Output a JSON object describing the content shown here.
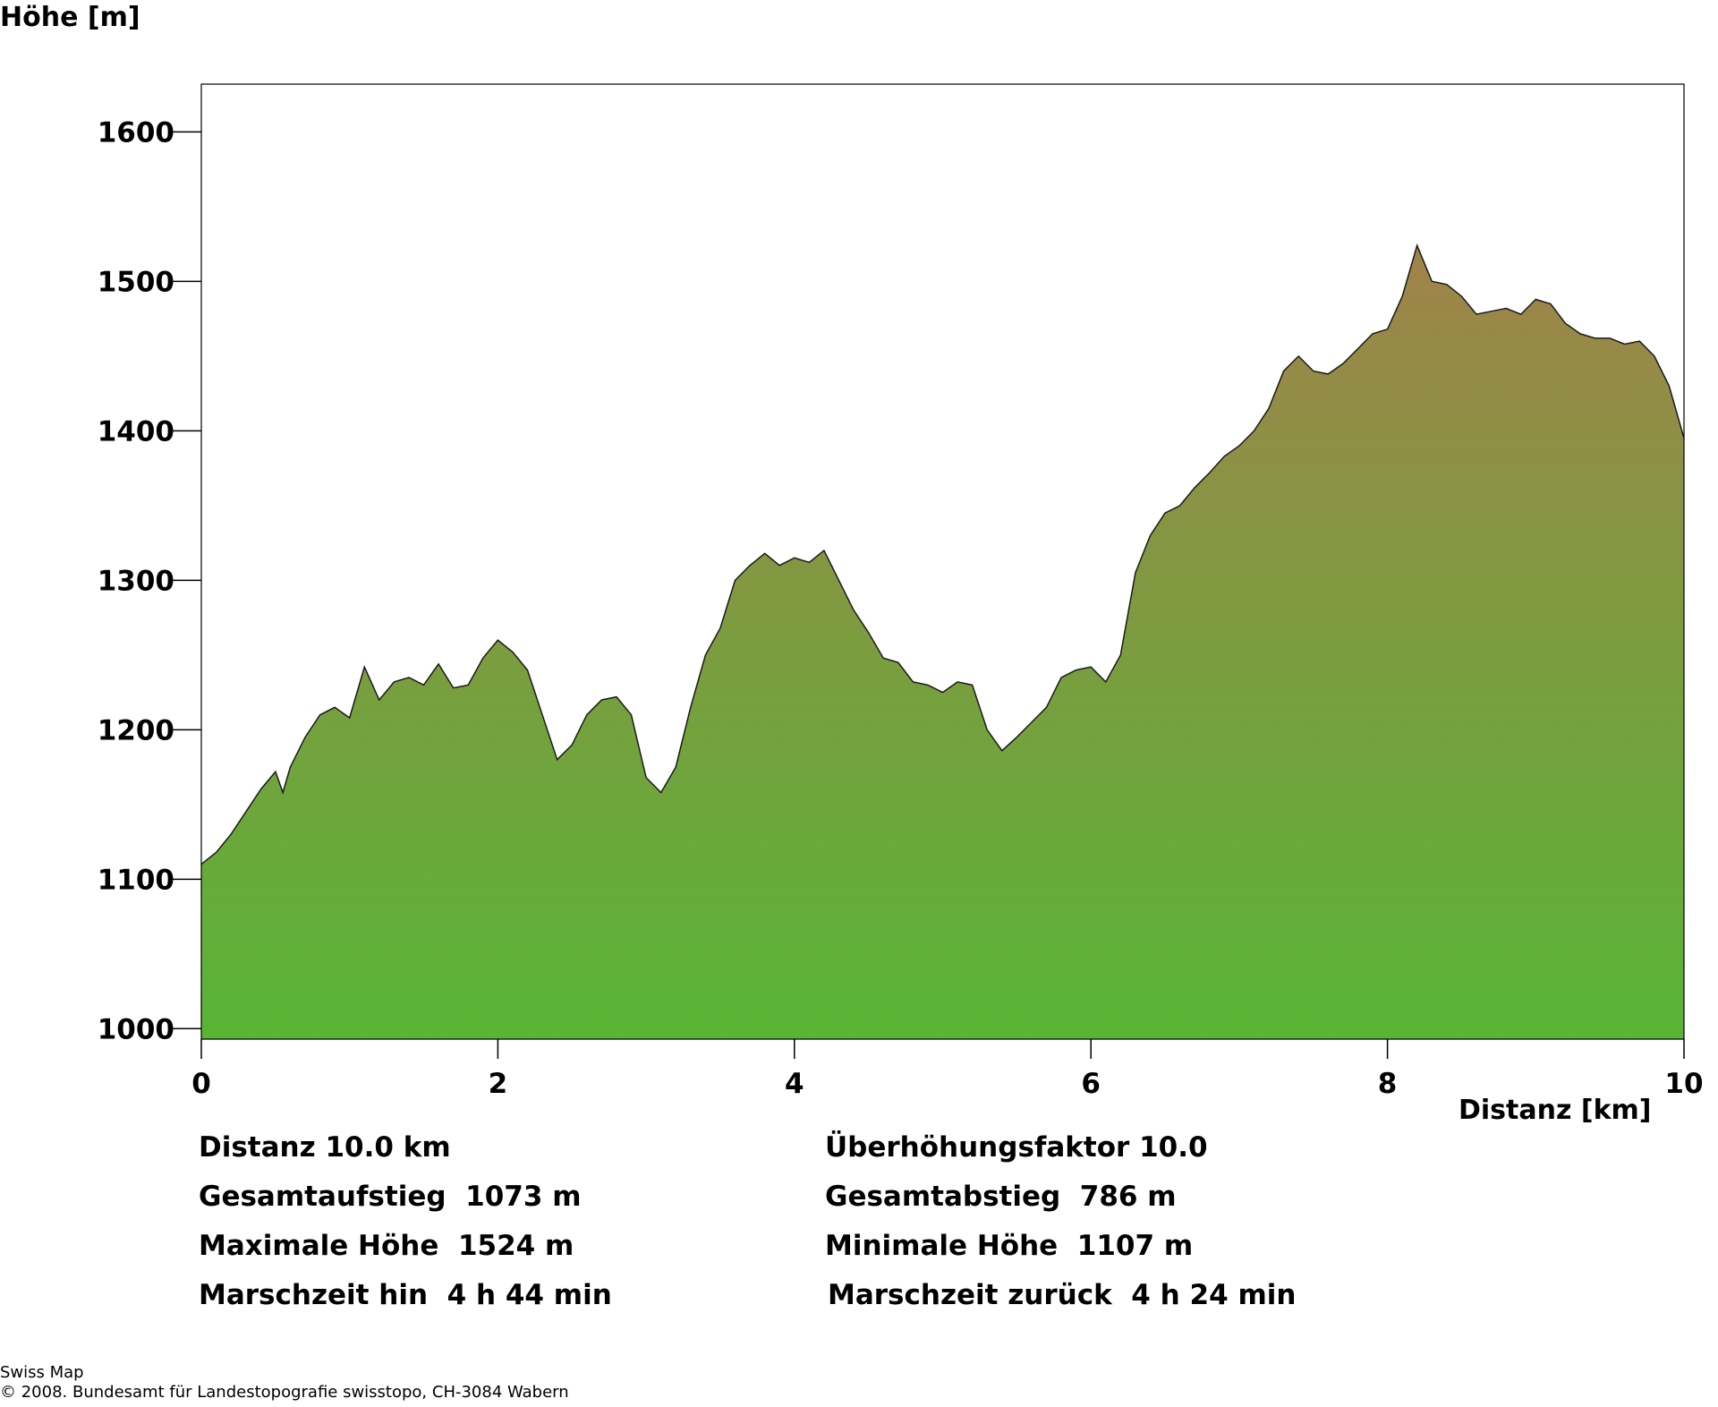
{
  "chart_data": {
    "type": "area",
    "title": "",
    "ylabel": "Höhe [m]",
    "xlabel": "Distanz [km]",
    "xlim": [
      0,
      10
    ],
    "ylim": [
      993,
      1632
    ],
    "x_ticks": [
      "0",
      "2",
      "4",
      "6",
      "8",
      "10"
    ],
    "y_ticks": [
      "1000",
      "1100",
      "1200",
      "1300",
      "1400",
      "1500",
      "1600"
    ],
    "grid": false,
    "legend": "none",
    "fill_top_color": "#a0834a",
    "fill_bottom_color": "#58b535",
    "series": [
      {
        "x": [
          0,
          0.1,
          0.2,
          0.3,
          0.4,
          0.5,
          0.55,
          0.6,
          0.7,
          0.8,
          0.9,
          1.0,
          1.1,
          1.2,
          1.3,
          1.4,
          1.5,
          1.6,
          1.7,
          1.8,
          1.9,
          2.0,
          2.1,
          2.2,
          2.3,
          2.4,
          2.5,
          2.6,
          2.7,
          2.8,
          2.9,
          3.0,
          3.1,
          3.2,
          3.3,
          3.4,
          3.5,
          3.6,
          3.7,
          3.8,
          3.9,
          4.0,
          4.1,
          4.2,
          4.3,
          4.4,
          4.5,
          4.6,
          4.7,
          4.8,
          4.9,
          5.0,
          5.1,
          5.2,
          5.3,
          5.4,
          5.5,
          5.6,
          5.7,
          5.8,
          5.9,
          6.0,
          6.1,
          6.2,
          6.3,
          6.4,
          6.5,
          6.6,
          6.7,
          6.8,
          6.9,
          7.0,
          7.1,
          7.2,
          7.3,
          7.4,
          7.5,
          7.6,
          7.7,
          7.8,
          7.9,
          8.0,
          8.1,
          8.2,
          8.3,
          8.4,
          8.5,
          8.6,
          8.7,
          8.8,
          8.9,
          9.0,
          9.1,
          9.2,
          9.3,
          9.4,
          9.5,
          9.6,
          9.7,
          9.8,
          9.9,
          10.0
        ],
        "y": [
          1110,
          1118,
          1130,
          1145,
          1160,
          1172,
          1158,
          1175,
          1195,
          1210,
          1215,
          1208,
          1242,
          1220,
          1232,
          1235,
          1230,
          1244,
          1228,
          1230,
          1248,
          1260,
          1252,
          1240,
          1210,
          1180,
          1190,
          1210,
          1220,
          1222,
          1210,
          1168,
          1158,
          1175,
          1215,
          1250,
          1268,
          1300,
          1310,
          1318,
          1310,
          1315,
          1312,
          1320,
          1300,
          1280,
          1265,
          1248,
          1245,
          1232,
          1230,
          1225,
          1232,
          1230,
          1200,
          1186,
          1195,
          1205,
          1215,
          1235,
          1240,
          1242,
          1232,
          1250,
          1305,
          1330,
          1345,
          1350,
          1362,
          1372,
          1383,
          1390,
          1400,
          1415,
          1440,
          1450,
          1440,
          1438,
          1445,
          1455,
          1465,
          1468,
          1490,
          1524,
          1500,
          1498,
          1490,
          1478,
          1480,
          1482,
          1478,
          1488,
          1485,
          1472,
          1465,
          1462,
          1462,
          1458,
          1460,
          1450,
          1430,
          1395
        ]
      }
    ]
  },
  "stats": {
    "distance": "Distanz 10.0 km",
    "exaggeration": "Überhöhungsfaktor 10.0",
    "ascent": "Gesamtaufstieg  1073 m",
    "descent": "Gesamtabstieg  786 m",
    "max_height": "Maximale Höhe  1524 m",
    "min_height": "Minimale Höhe  1107 m",
    "time_out": "Marschzeit hin  4 h 44 min",
    "time_back": "Marschzeit zurück  4 h 24 min"
  },
  "footer": {
    "line1": "Swiss Map",
    "line2": "© 2008. Bundesamt für Landestopografie swisstopo, CH-3084 Wabern"
  }
}
